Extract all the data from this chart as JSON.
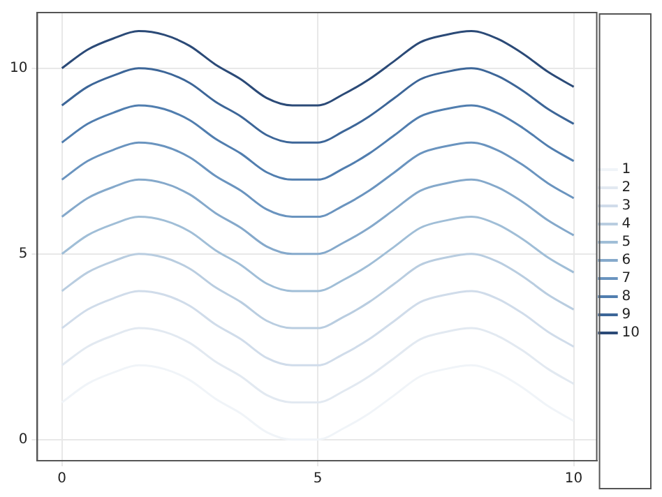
{
  "chart_data": {
    "type": "line",
    "x": [
      0,
      0.5,
      1,
      1.5,
      2,
      2.5,
      3,
      3.5,
      4,
      4.5,
      5,
      5.5,
      6,
      6.5,
      7,
      7.5,
      8,
      8.5,
      9,
      9.5,
      10
    ],
    "series": [
      {
        "name": "1",
        "color": "#f0f4f8",
        "values": [
          1,
          1.5,
          1.8,
          2,
          1.9,
          1.6,
          1.1,
          0.7,
          0.2,
          0,
          0,
          0.3,
          0.7,
          1.2,
          1.7,
          1.9,
          2,
          1.8,
          1.4,
          0.9,
          0.5
        ]
      },
      {
        "name": "2",
        "color": "#e2e9f1",
        "values": [
          2,
          2.5,
          2.8,
          3,
          2.9,
          2.6,
          2.1,
          1.7,
          1.2,
          1,
          1,
          1.3,
          1.7,
          2.2,
          2.7,
          2.9,
          3,
          2.8,
          2.4,
          1.9,
          1.5
        ]
      },
      {
        "name": "3",
        "color": "#d0dcea",
        "values": [
          3,
          3.5,
          3.8,
          4,
          3.9,
          3.6,
          3.1,
          2.7,
          2.2,
          2,
          2,
          2.3,
          2.7,
          3.2,
          3.7,
          3.9,
          4,
          3.8,
          3.4,
          2.9,
          2.5
        ]
      },
      {
        "name": "4",
        "color": "#b9cde0",
        "values": [
          4,
          4.5,
          4.8,
          5,
          4.9,
          4.6,
          4.1,
          3.7,
          3.2,
          3,
          3,
          3.3,
          3.7,
          4.2,
          4.7,
          4.9,
          5,
          4.8,
          4.4,
          3.9,
          3.5
        ]
      },
      {
        "name": "5",
        "color": "#a0bed7",
        "values": [
          5,
          5.5,
          5.8,
          6,
          5.9,
          5.6,
          5.1,
          4.7,
          4.2,
          4,
          4,
          4.3,
          4.7,
          5.2,
          5.7,
          5.9,
          6,
          5.8,
          5.4,
          4.9,
          4.5
        ]
      },
      {
        "name": "6",
        "color": "#85a9cb",
        "values": [
          6,
          6.5,
          6.8,
          7,
          6.9,
          6.6,
          6.1,
          5.7,
          5.2,
          5,
          5,
          5.3,
          5.7,
          6.2,
          6.7,
          6.9,
          7,
          6.8,
          6.4,
          5.9,
          5.5
        ]
      },
      {
        "name": "7",
        "color": "#6a94bf",
        "values": [
          7,
          7.5,
          7.8,
          8,
          7.9,
          7.6,
          7.1,
          6.7,
          6.2,
          6,
          6,
          6.3,
          6.7,
          7.2,
          7.7,
          7.9,
          8,
          7.8,
          7.4,
          6.9,
          6.5
        ]
      },
      {
        "name": "8",
        "color": "#517eaf",
        "values": [
          8,
          8.5,
          8.8,
          9,
          8.9,
          8.6,
          8.1,
          7.7,
          7.2,
          7,
          7,
          7.3,
          7.7,
          8.2,
          8.7,
          8.9,
          9,
          8.8,
          8.4,
          7.9,
          7.5
        ]
      },
      {
        "name": "9",
        "color": "#3d6698",
        "values": [
          9,
          9.5,
          9.8,
          10,
          9.9,
          9.6,
          9.1,
          8.7,
          8.2,
          8,
          8,
          8.3,
          8.7,
          9.2,
          9.7,
          9.9,
          10,
          9.8,
          9.4,
          8.9,
          8.5
        ]
      },
      {
        "name": "10",
        "color": "#2b4a77",
        "values": [
          10,
          10.5,
          10.8,
          11,
          10.9,
          10.6,
          10.1,
          9.7,
          9.2,
          9,
          9,
          9.3,
          9.7,
          10.2,
          10.7,
          10.9,
          11,
          10.8,
          10.4,
          9.9,
          9.5
        ]
      }
    ],
    "xlim": [
      -0.48,
      10.45
    ],
    "ylim": [
      -0.57,
      11.5
    ],
    "xticks": [
      0,
      5,
      10
    ],
    "yticks": [
      0,
      5,
      10
    ],
    "grid": true,
    "legend": "right",
    "marker": "none",
    "line_style": "solid"
  }
}
